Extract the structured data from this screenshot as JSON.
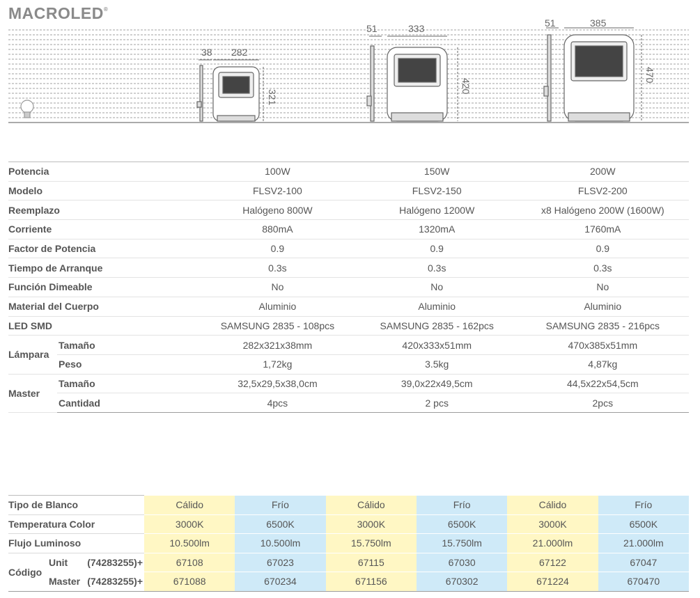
{
  "brand": {
    "name": "MACROLED",
    "mark": "®"
  },
  "colors": {
    "warm": "#fff7c4",
    "cold": "#cfeaf8",
    "text": "#555555",
    "line": "#bdbdbd"
  },
  "dimensions": {
    "p100": {
      "depth": "38",
      "width": "282",
      "height": "321"
    },
    "p150": {
      "depth": "51",
      "width": "333",
      "height": "420"
    },
    "p200": {
      "depth": "51",
      "width": "385",
      "height": "470"
    }
  },
  "specs": [
    {
      "label": "Potencia",
      "values": [
        "100W",
        "150W",
        "200W"
      ]
    },
    {
      "label": "Modelo",
      "values": [
        "FLSV2-100",
        "FLSV2-150",
        "FLSV2-200"
      ]
    },
    {
      "label": "Reemplazo",
      "values": [
        "Halógeno 800W",
        "Halógeno 1200W",
        "x8 Halógeno 200W (1600W)"
      ]
    },
    {
      "label": "Corriente",
      "values": [
        "880mA",
        "1320mA",
        "1760mA"
      ]
    },
    {
      "label": "Factor de Potencia",
      "values": [
        "0.9",
        "0.9",
        "0.9"
      ]
    },
    {
      "label": "Tiempo de Arranque",
      "values": [
        "0.3s",
        "0.3s",
        "0.3s"
      ]
    },
    {
      "label": "Función Dimeable",
      "values": [
        "No",
        "No",
        "No"
      ]
    },
    {
      "label": "Material del Cuerpo",
      "values": [
        "Aluminio",
        "Aluminio",
        "Aluminio"
      ]
    },
    {
      "label": "LED SMD",
      "values": [
        "SAMSUNG 2835 - 108pcs",
        "SAMSUNG 2835 - 162pcs",
        "SAMSUNG 2835 - 216pcs"
      ]
    }
  ],
  "lampara": {
    "label": "Lámpara",
    "rows": [
      {
        "label": "Tamaño",
        "values": [
          "282x321x38mm",
          "420x333x51mm",
          "470x385x51mm"
        ]
      },
      {
        "label": "Peso",
        "values": [
          "1,72kg",
          "3.5kg",
          "4,87kg"
        ]
      }
    ]
  },
  "master": {
    "label": "Master",
    "rows": [
      {
        "label": "Tamaño",
        "values": [
          "32,5x29,5x38,0cm",
          "39,0x22x49,5cm",
          "44,5x22x54,5cm"
        ]
      },
      {
        "label": "Cantidad",
        "values": [
          "4pcs",
          "2 pcs",
          "2pcs"
        ]
      }
    ]
  },
  "codes": {
    "tipo": {
      "label": "Tipo de Blanco",
      "values": [
        "Cálido",
        "Frío",
        "Cálido",
        "Frío",
        "Cálido",
        "Frío"
      ]
    },
    "temp": {
      "label": "Temperatura Color",
      "values": [
        "3000K",
        "6500K",
        "3000K",
        "6500K",
        "3000K",
        "6500K"
      ]
    },
    "flujo": {
      "label": "Flujo Luminoso",
      "values": [
        "10.500lm",
        "10.500lm",
        "15.750lm",
        "15.750lm",
        "21.000lm",
        "21.000lm"
      ]
    },
    "codigo": {
      "label": "Código",
      "unit": {
        "label": "Unit",
        "prefix": "(74283255)+",
        "values": [
          "67108",
          "67023",
          "67115",
          "67030",
          "67122",
          "67047"
        ]
      },
      "master": {
        "label": "Master",
        "prefix": "(74283255)+",
        "values": [
          "671088",
          "670234",
          "671156",
          "670302",
          "671224",
          "670470"
        ]
      }
    }
  }
}
